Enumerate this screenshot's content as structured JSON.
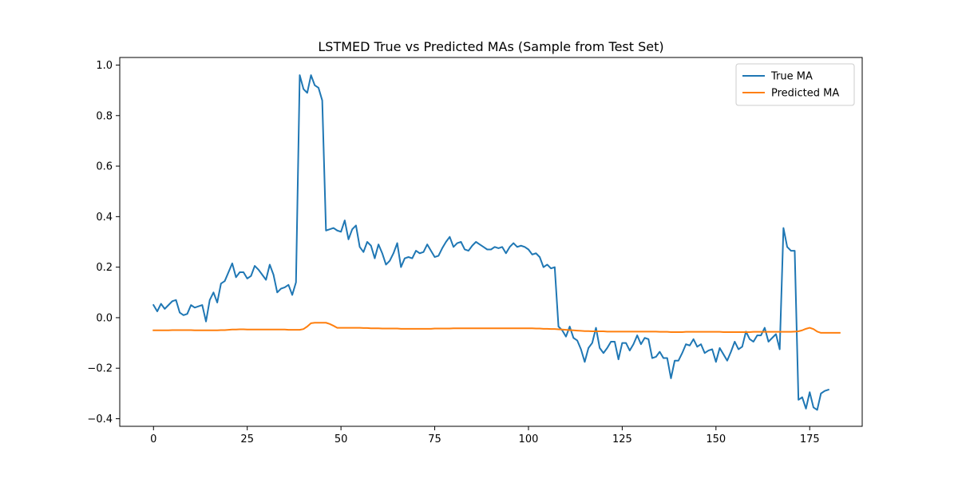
{
  "chart_data": {
    "type": "line",
    "title": "LSTMED True vs Predicted MAs (Sample from Test Set)",
    "xlabel": "",
    "ylabel": "",
    "xlim": [
      -9,
      189
    ],
    "ylim": [
      -0.43,
      1.03
    ],
    "xticks": [
      0,
      25,
      50,
      75,
      100,
      125,
      150,
      175
    ],
    "yticks": [
      -0.4,
      -0.2,
      0.0,
      0.2,
      0.4,
      0.6,
      0.8,
      1.0
    ],
    "xtick_labels": [
      "0",
      "25",
      "50",
      "75",
      "100",
      "125",
      "150",
      "175"
    ],
    "ytick_labels": [
      "−0.4",
      "−0.2",
      "0.0",
      "0.2",
      "0.4",
      "0.6",
      "0.8",
      "1.0"
    ],
    "grid": false,
    "legend_position": "top-right",
    "series": [
      {
        "name": "True MA",
        "color": "#1f77b4",
        "x_start": 0,
        "x_step": 1,
        "values": [
          0.05,
          0.025,
          0.055,
          0.035,
          0.05,
          0.065,
          0.07,
          0.02,
          0.01,
          0.015,
          0.05,
          0.04,
          0.045,
          0.05,
          -0.015,
          0.07,
          0.1,
          0.06,
          0.135,
          0.145,
          0.18,
          0.215,
          0.16,
          0.18,
          0.18,
          0.155,
          0.165,
          0.205,
          0.19,
          0.17,
          0.15,
          0.21,
          0.17,
          0.1,
          0.115,
          0.12,
          0.13,
          0.09,
          0.14,
          0.96,
          0.905,
          0.89,
          0.96,
          0.92,
          0.91,
          0.86,
          0.345,
          0.35,
          0.355,
          0.345,
          0.34,
          0.385,
          0.31,
          0.35,
          0.365,
          0.28,
          0.26,
          0.3,
          0.285,
          0.235,
          0.29,
          0.255,
          0.21,
          0.225,
          0.255,
          0.295,
          0.2,
          0.235,
          0.24,
          0.235,
          0.265,
          0.255,
          0.26,
          0.29,
          0.265,
          0.24,
          0.245,
          0.275,
          0.3,
          0.32,
          0.28,
          0.295,
          0.3,
          0.27,
          0.265,
          0.285,
          0.3,
          0.29,
          0.28,
          0.27,
          0.27,
          0.28,
          0.275,
          0.28,
          0.255,
          0.28,
          0.295,
          0.28,
          0.285,
          0.28,
          0.27,
          0.25,
          0.255,
          0.24,
          0.2,
          0.21,
          0.195,
          0.2,
          -0.035,
          -0.05,
          -0.075,
          -0.035,
          -0.08,
          -0.09,
          -0.125,
          -0.175,
          -0.12,
          -0.1,
          -0.04,
          -0.12,
          -0.14,
          -0.12,
          -0.095,
          -0.095,
          -0.165,
          -0.1,
          -0.1,
          -0.13,
          -0.105,
          -0.07,
          -0.105,
          -0.08,
          -0.085,
          -0.16,
          -0.155,
          -0.135,
          -0.16,
          -0.16,
          -0.24,
          -0.17,
          -0.17,
          -0.14,
          -0.105,
          -0.11,
          -0.085,
          -0.115,
          -0.105,
          -0.14,
          -0.13,
          -0.125,
          -0.175,
          -0.12,
          -0.145,
          -0.17,
          -0.135,
          -0.095,
          -0.125,
          -0.115,
          -0.055,
          -0.085,
          -0.095,
          -0.07,
          -0.07,
          -0.04,
          -0.095,
          -0.08,
          -0.065,
          -0.125,
          0.355,
          0.28,
          0.265,
          0.265,
          -0.325,
          -0.315,
          -0.36,
          -0.295,
          -0.355,
          -0.365,
          -0.3,
          -0.29,
          -0.285
        ]
      },
      {
        "name": "Predicted MA",
        "color": "#ff7f0e",
        "x_start": 0,
        "x_step": 1,
        "values": [
          -0.05,
          -0.05,
          -0.05,
          -0.05,
          -0.05,
          -0.049,
          -0.049,
          -0.049,
          -0.049,
          -0.049,
          -0.049,
          -0.05,
          -0.05,
          -0.05,
          -0.05,
          -0.05,
          -0.05,
          -0.05,
          -0.049,
          -0.049,
          -0.048,
          -0.047,
          -0.047,
          -0.046,
          -0.046,
          -0.047,
          -0.047,
          -0.047,
          -0.047,
          -0.047,
          -0.047,
          -0.047,
          -0.047,
          -0.047,
          -0.047,
          -0.047,
          -0.048,
          -0.048,
          -0.048,
          -0.048,
          -0.045,
          -0.035,
          -0.022,
          -0.02,
          -0.02,
          -0.02,
          -0.02,
          -0.025,
          -0.032,
          -0.04,
          -0.04,
          -0.04,
          -0.04,
          -0.04,
          -0.04,
          -0.04,
          -0.041,
          -0.041,
          -0.042,
          -0.042,
          -0.042,
          -0.043,
          -0.043,
          -0.043,
          -0.043,
          -0.043,
          -0.044,
          -0.044,
          -0.044,
          -0.044,
          -0.044,
          -0.044,
          -0.044,
          -0.044,
          -0.044,
          -0.043,
          -0.043,
          -0.043,
          -0.043,
          -0.043,
          -0.042,
          -0.042,
          -0.042,
          -0.042,
          -0.042,
          -0.042,
          -0.042,
          -0.042,
          -0.042,
          -0.042,
          -0.042,
          -0.042,
          -0.042,
          -0.042,
          -0.042,
          -0.042,
          -0.042,
          -0.042,
          -0.042,
          -0.042,
          -0.042,
          -0.042,
          -0.043,
          -0.043,
          -0.044,
          -0.044,
          -0.045,
          -0.045,
          -0.046,
          -0.047,
          -0.048,
          -0.049,
          -0.05,
          -0.051,
          -0.052,
          -0.053,
          -0.053,
          -0.054,
          -0.054,
          -0.054,
          -0.054,
          -0.055,
          -0.055,
          -0.055,
          -0.055,
          -0.055,
          -0.055,
          -0.055,
          -0.055,
          -0.055,
          -0.055,
          -0.055,
          -0.055,
          -0.055,
          -0.055,
          -0.056,
          -0.056,
          -0.056,
          -0.057,
          -0.057,
          -0.057,
          -0.057,
          -0.056,
          -0.056,
          -0.056,
          -0.056,
          -0.056,
          -0.056,
          -0.056,
          -0.056,
          -0.056,
          -0.056,
          -0.057,
          -0.057,
          -0.057,
          -0.057,
          -0.057,
          -0.057,
          -0.057,
          -0.057,
          -0.056,
          -0.056,
          -0.056,
          -0.056,
          -0.056,
          -0.056,
          -0.056,
          -0.056,
          -0.056,
          -0.056,
          -0.056,
          -0.055,
          -0.054,
          -0.05,
          -0.044,
          -0.04,
          -0.045,
          -0.055,
          -0.06,
          -0.06,
          -0.06,
          -0.06,
          -0.06,
          -0.06
        ]
      }
    ]
  }
}
